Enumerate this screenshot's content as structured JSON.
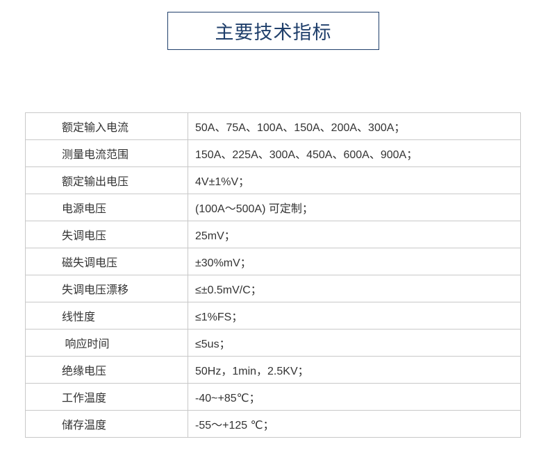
{
  "title": "主要技术指标",
  "colors": {
    "title_border": "#1f3f6b",
    "title_text": "#1f3f6b",
    "grid": "#c8c8c8"
  },
  "specs": [
    {
      "label": "额定输入电流",
      "value": "50A、75A、100A、150A、200A、300A；"
    },
    {
      "label": "测量电流范围",
      "value": "150A、225A、300A、450A、600A、900A；"
    },
    {
      "label": "额定输出电压",
      "value": "4V±1%V；"
    },
    {
      "label": "电源电压",
      "value": "(100A～500A) 可定制；"
    },
    {
      "label": "失调电压",
      "value": "25mV；"
    },
    {
      "label": "磁失调电压",
      "value": "±30%mV；"
    },
    {
      "label": "失调电压漂移",
      "value": "≤±0.5mV/C；"
    },
    {
      "label": "线性度",
      "value": "≤1%FS；"
    },
    {
      "label": " 响应时间",
      "value": "≤5us；"
    },
    {
      "label": "绝缘电压",
      "value": "50Hz，1min，2.5KV；"
    },
    {
      "label": "工作温度",
      "value": "-40~+85℃；"
    },
    {
      "label": "储存温度",
      "value": "-55～+125 ℃；"
    }
  ]
}
